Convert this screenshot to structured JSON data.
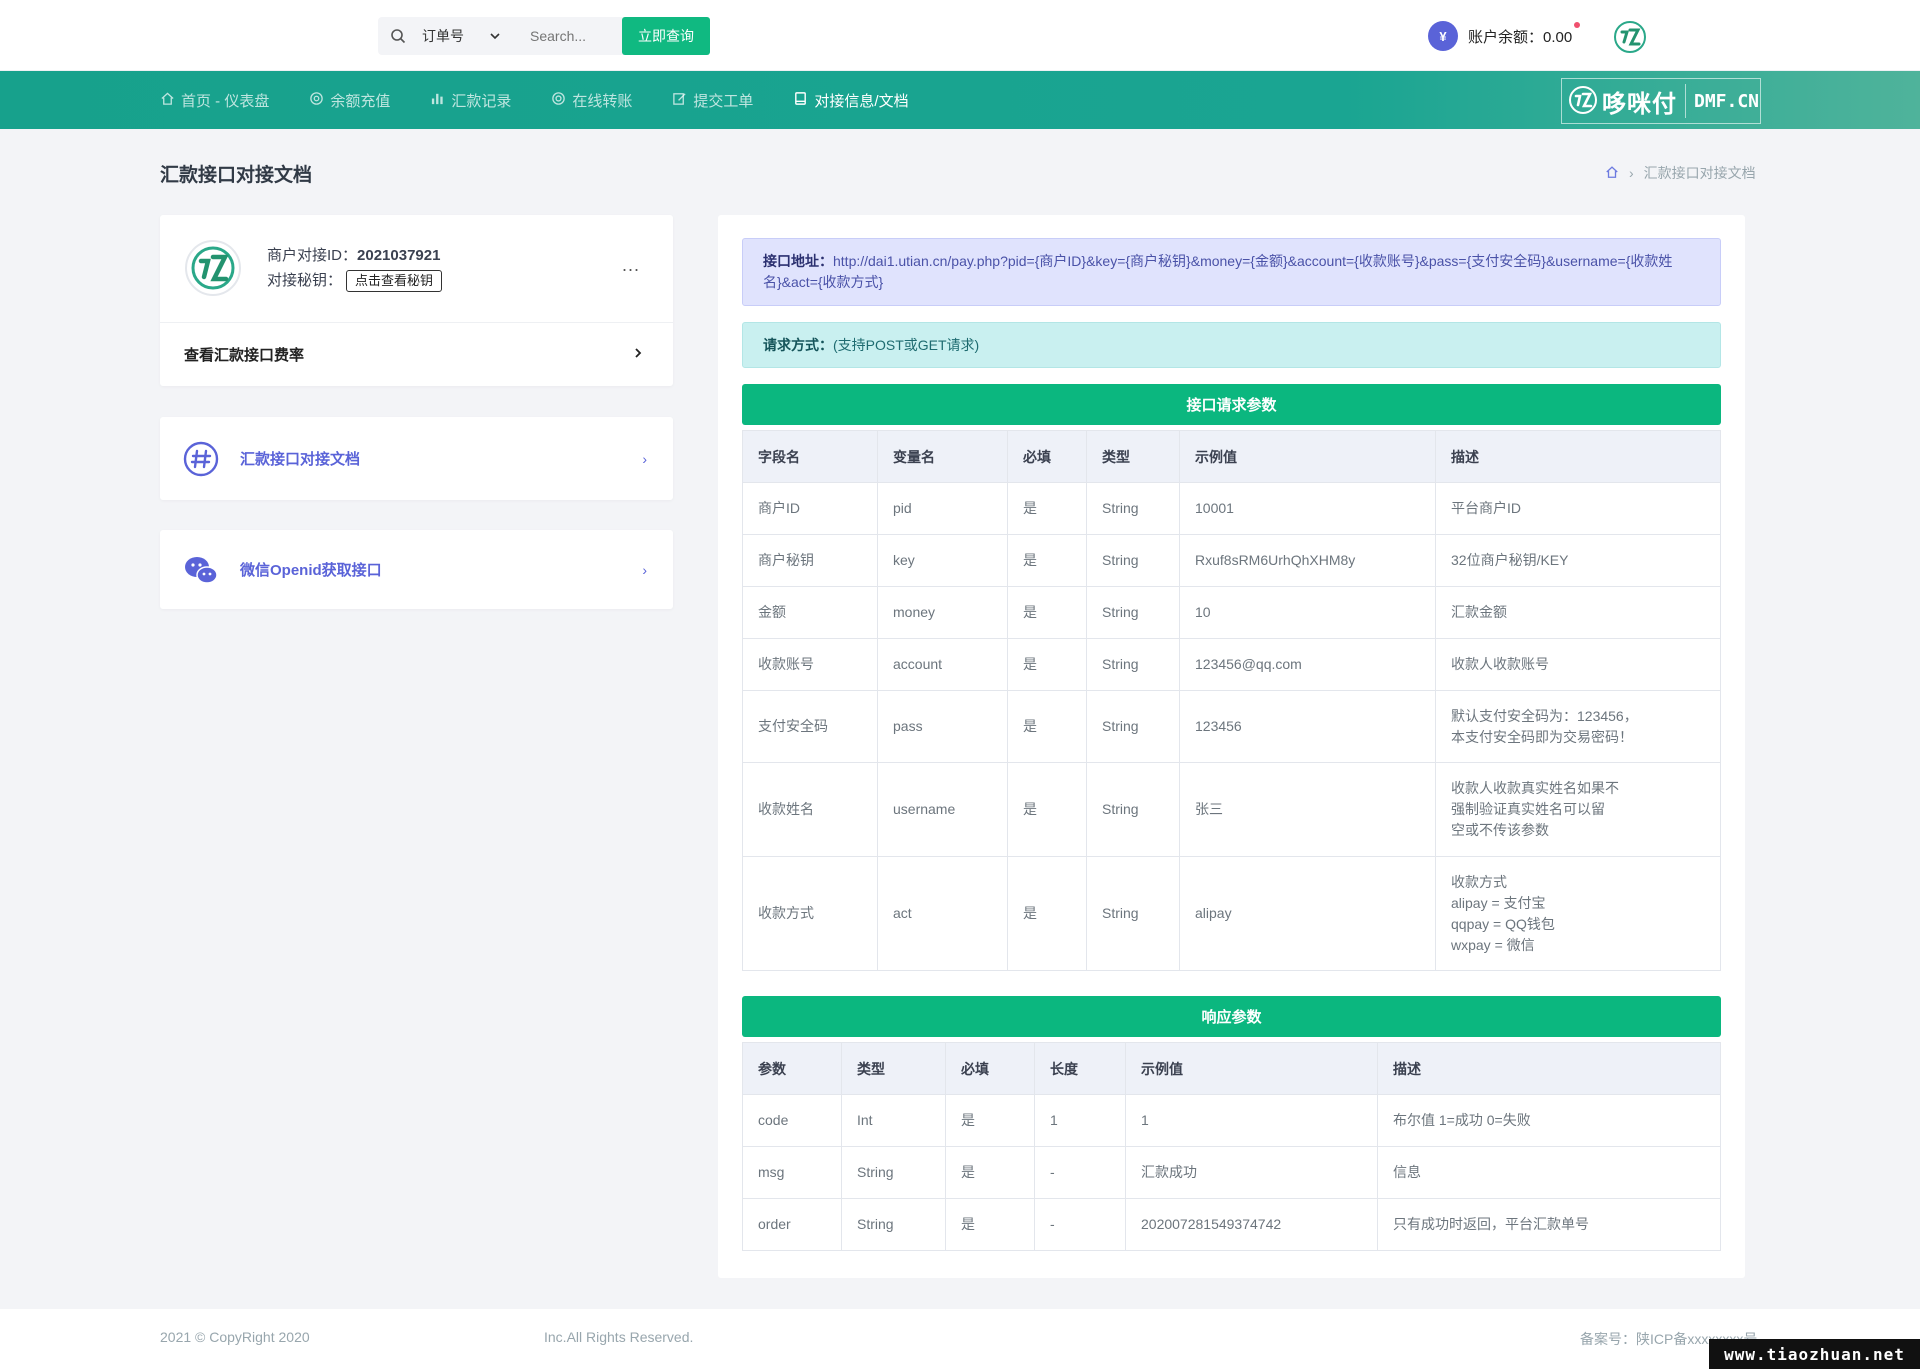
{
  "topbar": {
    "search_select": "订单号",
    "search_placeholder": "Search...",
    "search_button": "立即查询",
    "balance_symbol": "¥",
    "balance_label": "账户余额：0.00",
    "user_suffix": "."
  },
  "nav": {
    "items": [
      {
        "label": "首页 - 仪表盘",
        "icon": "home-icon"
      },
      {
        "label": "余额充值",
        "icon": "target-icon"
      },
      {
        "label": "汇款记录",
        "icon": "bar-chart-icon"
      },
      {
        "label": "在线转账",
        "icon": "life-ring-icon"
      },
      {
        "label": "提交工单",
        "icon": "edit-icon"
      },
      {
        "label": "对接信息/文档",
        "icon": "book-icon",
        "active": true
      }
    ],
    "brand_cn": "哆咪付",
    "brand_en": "DMF.CN"
  },
  "page": {
    "title": "汇款接口对接文档",
    "breadcrumb": "汇款接口对接文档"
  },
  "merchant": {
    "id_label": "商户对接ID：",
    "id_value": "2021037921",
    "key_label": "对接秘钥：",
    "key_button": "点击查看秘钥",
    "more": "...",
    "rate_link": "查看汇款接口费率"
  },
  "side_links": [
    {
      "label": "汇款接口对接文档",
      "icon": "hash-icon"
    },
    {
      "label": "微信Openid获取接口",
      "icon": "wechat-icon"
    }
  ],
  "api": {
    "url_label": "接口地址：",
    "url_value": "http://dai1.utian.cn/pay.php?pid={商户ID}&key={商户秘钥}&money={金额}&account={收款账号}&pass={支付安全码}&username={收款姓名}&act={收款方式}",
    "method_label": "请求方式：",
    "method_value": "(支持POST或GET请求)"
  },
  "request_table": {
    "title": "接口请求参数",
    "headers": [
      "字段名",
      "变量名",
      "必填",
      "类型",
      "示例值",
      "描述"
    ],
    "rows": [
      [
        "商户ID",
        "pid",
        "是",
        "String",
        "10001",
        "平台商户ID"
      ],
      [
        "商户秘钥",
        "key",
        "是",
        "String",
        "Rxuf8sRM6UrhQhXHM8y",
        "32位商户秘钥/KEY"
      ],
      [
        "金额",
        "money",
        "是",
        "String",
        "10",
        "汇款金额"
      ],
      [
        "收款账号",
        "account",
        "是",
        "String",
        "123456@qq.com",
        "收款人收款账号"
      ],
      [
        "支付安全码",
        "pass",
        "是",
        "String",
        "123456",
        "默认支付安全码为：123456，\n本支付安全码即为交易密码！"
      ],
      [
        "收款姓名",
        "username",
        "是",
        "String",
        "张三",
        "收款人收款真实姓名如果不\n强制验证真实姓名可以留\n空或不传该参数"
      ],
      [
        "收款方式",
        "act",
        "是",
        "String",
        "alipay",
        "收款方式\nalipay = 支付宝\nqqpay = QQ钱包\nwxpay = 微信"
      ]
    ]
  },
  "response_table": {
    "title": "响应参数",
    "headers": [
      "参数",
      "类型",
      "必填",
      "长度",
      "示例值",
      "描述"
    ],
    "rows": [
      [
        "code",
        "Int",
        "是",
        "1",
        "1",
        "布尔值 1=成功 0=失败"
      ],
      [
        "msg",
        "String",
        "是",
        "-",
        "汇款成功",
        "信息"
      ],
      [
        "order",
        "String",
        "是",
        "-",
        "2020072815493747​42",
        "只有成功时返回，平台汇款单号"
      ]
    ]
  },
  "footer": {
    "left": "2021 © CopyRight 2020",
    "mid": "Inc.All Rights Reserved.",
    "right": "备案号：陕ICP备xxxxxxxx号"
  },
  "watermark": "www.tiaozhuan.net",
  "colors": {
    "accent": "#10b981",
    "nav": "#17a18c",
    "link": "#5a63d8"
  }
}
